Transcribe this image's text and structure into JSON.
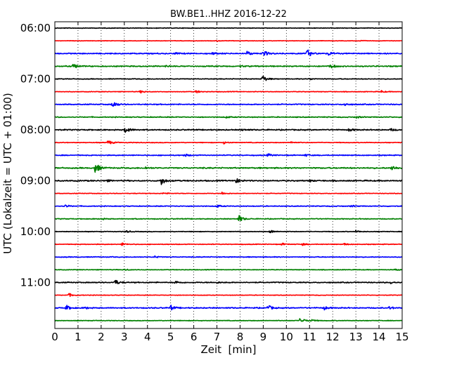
{
  "chart_data": {
    "type": "line",
    "title": "BW.BE1..HHZ 2016-12-22",
    "xlabel": "Zeit  [min]",
    "ylabel": "UTC (Lokalzeit = UTC + 01:00)",
    "xlim": [
      0,
      15
    ],
    "x_ticks": [
      "0",
      "1",
      "2",
      "3",
      "4",
      "5",
      "6",
      "7",
      "8",
      "9",
      "10",
      "11",
      "12",
      "13",
      "14",
      "15"
    ],
    "y_ticks": [
      "06:00",
      "07:00",
      "08:00",
      "09:00",
      "10:00",
      "11:00"
    ],
    "grid": "vertical dotted lines at each minute",
    "colors": [
      "#000000",
      "#ff0000",
      "#0000ff",
      "#008000"
    ],
    "row_interval_minutes": 15,
    "rows": [
      {
        "time": "06:00",
        "color": "#000000",
        "events": [],
        "noise": 0.35
      },
      {
        "time": "06:15",
        "color": "#ff0000",
        "events": [
          [
            7.0,
            0.9
          ],
          [
            13.1,
            1.1
          ]
        ],
        "noise": 0.25
      },
      {
        "time": "06:30",
        "color": "#0000ff",
        "events": [
          [
            8.3,
            3
          ],
          [
            9.0,
            4.5
          ],
          [
            10.9,
            6
          ],
          [
            11.8,
            3
          ],
          [
            6.8,
            1.5
          ],
          [
            5.2,
            1.2
          ]
        ],
        "noise": 0.6
      },
      {
        "time": "06:45",
        "color": "#008000",
        "events": [
          [
            0.8,
            4
          ],
          [
            11.9,
            3.5
          ],
          [
            8.0,
            1.2
          ],
          [
            4.8,
            1.0
          ]
        ],
        "noise": 0.6
      },
      {
        "time": "07:00",
        "color": "#000000",
        "events": [
          [
            8.95,
            6
          ],
          [
            11.0,
            1.2
          ]
        ],
        "noise": 0.4
      },
      {
        "time": "07:15",
        "color": "#ff0000",
        "events": [
          [
            3.7,
            1.8
          ],
          [
            6.1,
            1.8
          ],
          [
            14.1,
            1.4
          ]
        ],
        "noise": 0.35
      },
      {
        "time": "07:30",
        "color": "#0000ff",
        "events": [
          [
            2.5,
            5
          ],
          [
            12.5,
            2
          ]
        ],
        "noise": 0.55
      },
      {
        "time": "07:45",
        "color": "#008000",
        "events": [
          [
            13.0,
            1.5
          ],
          [
            7.4,
            1.2
          ]
        ],
        "noise": 0.5
      },
      {
        "time": "08:00",
        "color": "#000000",
        "events": [
          [
            3.05,
            5
          ],
          [
            12.7,
            2
          ],
          [
            14.5,
            1.8
          ],
          [
            8.1,
            1.2
          ]
        ],
        "noise": 0.6
      },
      {
        "time": "08:15",
        "color": "#ff0000",
        "events": [
          [
            2.3,
            3.5
          ],
          [
            7.3,
            1.5
          ],
          [
            10.2,
            1.3
          ]
        ],
        "noise": 0.4
      },
      {
        "time": "08:30",
        "color": "#0000ff",
        "events": [
          [
            5.6,
            2
          ],
          [
            9.2,
            2
          ],
          [
            10.8,
            1.5
          ]
        ],
        "noise": 0.5
      },
      {
        "time": "08:45",
        "color": "#008000",
        "events": [
          [
            1.75,
            8
          ],
          [
            14.55,
            4
          ],
          [
            3.9,
            1.5
          ]
        ],
        "noise": 0.7
      },
      {
        "time": "09:00",
        "color": "#000000",
        "events": [
          [
            4.6,
            6
          ],
          [
            7.8,
            4
          ],
          [
            2.2,
            1.5
          ],
          [
            11.0,
            1.2
          ]
        ],
        "noise": 0.65
      },
      {
        "time": "09:15",
        "color": "#ff0000",
        "events": [
          [
            7.2,
            2
          ],
          [
            4.7,
            1.2
          ]
        ],
        "noise": 0.35
      },
      {
        "time": "09:30",
        "color": "#0000ff",
        "events": [
          [
            0.45,
            2
          ],
          [
            7.0,
            1.8
          ],
          [
            12.8,
            1.2
          ]
        ],
        "noise": 0.45
      },
      {
        "time": "09:45",
        "color": "#008000",
        "events": [
          [
            7.95,
            5
          ],
          [
            2.0,
            1.2
          ]
        ],
        "noise": 0.45
      },
      {
        "time": "10:00",
        "color": "#000000",
        "events": [
          [
            9.3,
            2.5
          ],
          [
            3.1,
            1.5
          ],
          [
            13.0,
            1.5
          ]
        ],
        "noise": 0.35
      },
      {
        "time": "10:15",
        "color": "#ff0000",
        "events": [
          [
            2.9,
            2
          ],
          [
            9.8,
            1.5
          ],
          [
            10.7,
            1.5
          ],
          [
            12.5,
            1.3
          ]
        ],
        "noise": 0.4
      },
      {
        "time": "10:30",
        "color": "#0000ff",
        "events": [
          [
            4.3,
            1.5
          ]
        ],
        "noise": 0.45
      },
      {
        "time": "10:45",
        "color": "#008000",
        "events": [
          [
            3.0,
            1.3
          ],
          [
            14.7,
            1.2
          ]
        ],
        "noise": 0.35
      },
      {
        "time": "11:00",
        "color": "#000000",
        "events": [
          [
            2.6,
            4
          ],
          [
            5.2,
            2
          ],
          [
            14.5,
            1.5
          ],
          [
            7.0,
            1.0
          ]
        ],
        "noise": 0.55
      },
      {
        "time": "11:15",
        "color": "#ff0000",
        "events": [
          [
            0.6,
            2.5
          ]
        ],
        "noise": 0.3
      },
      {
        "time": "11:30",
        "color": "#0000ff",
        "events": [
          [
            0.5,
            3.5
          ],
          [
            5.0,
            3.5
          ],
          [
            9.2,
            4
          ],
          [
            11.6,
            3
          ],
          [
            14.45,
            2
          ],
          [
            1.3,
            1.5
          ]
        ],
        "noise": 0.6
      },
      {
        "time": "11:45",
        "color": "#008000",
        "events": [
          [
            10.6,
            5
          ],
          [
            11.1,
            1.2
          ]
        ],
        "noise": 0.35
      }
    ]
  }
}
